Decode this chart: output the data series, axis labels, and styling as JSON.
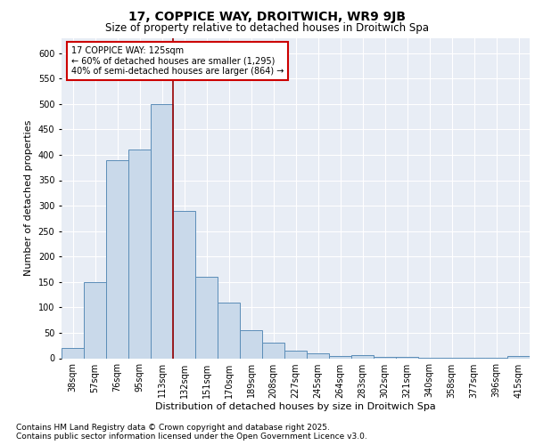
{
  "title_line1": "17, COPPICE WAY, DROITWICH, WR9 9JB",
  "title_line2": "Size of property relative to detached houses in Droitwich Spa",
  "xlabel": "Distribution of detached houses by size in Droitwich Spa",
  "ylabel": "Number of detached properties",
  "categories": [
    "38sqm",
    "57sqm",
    "76sqm",
    "95sqm",
    "113sqm",
    "132sqm",
    "151sqm",
    "170sqm",
    "189sqm",
    "208sqm",
    "227sqm",
    "245sqm",
    "264sqm",
    "283sqm",
    "302sqm",
    "321sqm",
    "340sqm",
    "358sqm",
    "377sqm",
    "396sqm",
    "415sqm"
  ],
  "values": [
    20,
    150,
    390,
    410,
    500,
    290,
    160,
    110,
    55,
    30,
    15,
    10,
    5,
    7,
    3,
    2,
    1,
    1,
    1,
    1,
    5
  ],
  "bar_color": "#c9d9ea",
  "bar_edge_color": "#5b8db8",
  "annotation_text": "17 COPPICE WAY: 125sqm\n← 60% of detached houses are smaller (1,295)\n40% of semi-detached houses are larger (864) →",
  "annotation_box_color": "#ffffff",
  "annotation_box_edge": "#cc0000",
  "vline_color": "#990000",
  "vline_x_index": 4.5,
  "ylim": [
    0,
    630
  ],
  "yticks": [
    0,
    50,
    100,
    150,
    200,
    250,
    300,
    350,
    400,
    450,
    500,
    550,
    600
  ],
  "bg_color": "#e8edf5",
  "grid_color": "#ffffff",
  "footer_line1": "Contains HM Land Registry data © Crown copyright and database right 2025.",
  "footer_line2": "Contains public sector information licensed under the Open Government Licence v3.0.",
  "title_fontsize": 10,
  "subtitle_fontsize": 8.5,
  "axis_label_fontsize": 8,
  "tick_fontsize": 7,
  "footer_fontsize": 6.5,
  "annotation_fontsize": 7
}
